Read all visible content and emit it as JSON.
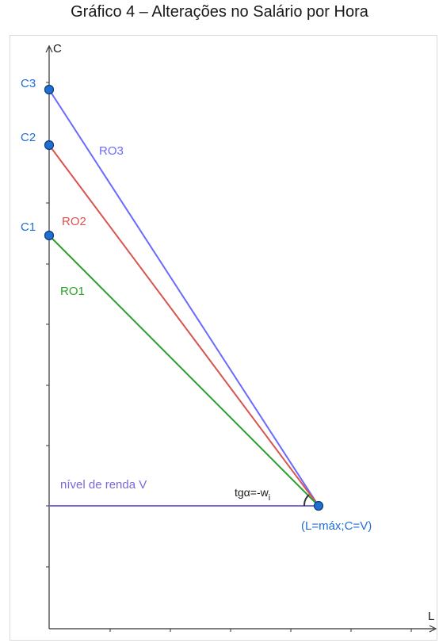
{
  "title": "Gráfico 4 – Alterações no Salário por Hora",
  "axes": {
    "y_label": "C",
    "x_label": "L"
  },
  "points": {
    "c1": "C1",
    "c2": "C2",
    "c3": "C3",
    "end": "(L=máx;C=V)"
  },
  "lines": {
    "ro1": "RO1",
    "ro2": "RO2",
    "ro3": "RO3"
  },
  "income_level": "nível de renda V",
  "slope": {
    "main": "tgα=-w",
    "sub": "i"
  },
  "colors": {
    "ro1": "#2ca02c",
    "ro2": "#d9534f",
    "ro3": "#6a6aff",
    "income": "#7b68d8",
    "points": "#1f6fd1",
    "point_labels": "#1f6fd1",
    "axis": "#333333"
  }
}
